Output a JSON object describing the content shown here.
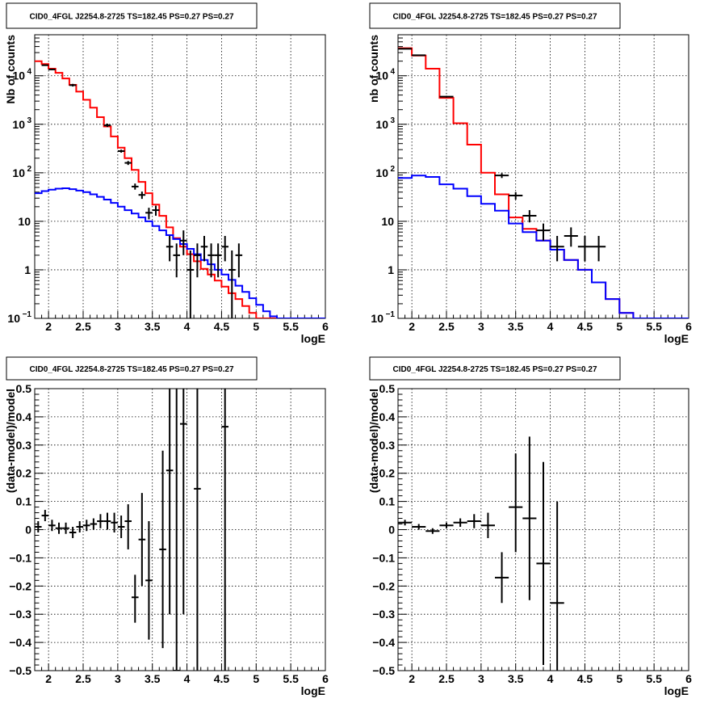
{
  "chart_data": [
    {
      "type": "line",
      "title": "CID0_4FGL J2254.8-2725 TS=182.45 PS=0.27 PS=0.27",
      "xlabel": "logE",
      "ylabel": "Nb of counts",
      "xlim": [
        1.8,
        6.0
      ],
      "ylim": [
        0.1,
        70000
      ],
      "yscale": "log",
      "grid": true,
      "xticks": [
        "2",
        "2.5",
        "3",
        "3.5",
        "4",
        "4.5",
        "5",
        "5.5",
        "6"
      ],
      "yticks": [
        {
          "v": 0.1,
          "b": "10",
          "e": "−1"
        },
        {
          "v": 1,
          "b": "1",
          "e": ""
        },
        {
          "v": 10,
          "b": "10",
          "e": ""
        },
        {
          "v": 100,
          "b": "10",
          "e": "2"
        },
        {
          "v": 1000,
          "b": "10",
          "e": "3"
        },
        {
          "v": 10000,
          "b": "10",
          "e": "4"
        }
      ],
      "step_width": 0.1,
      "series": [
        {
          "color": "#ff0000",
          "x0": 1.8,
          "values": [
            20000,
            17500,
            14000,
            11500,
            8800,
            6500,
            4700,
            3200,
            2200,
            1400,
            900,
            560,
            330,
            200,
            115,
            65,
            38,
            22,
            13,
            7.5,
            4.5,
            3.0,
            2.1,
            1.5,
            1.05,
            0.8,
            0.6,
            0.45,
            0.33,
            0.25,
            0.18,
            0.13,
            0.1,
            0.1,
            0.1,
            0.1,
            0.1,
            0.1,
            0.1,
            0.1,
            0.1,
            0.1
          ]
        },
        {
          "color": "#0000ff",
          "x0": 1.8,
          "values": [
            38,
            42,
            45,
            47,
            48,
            46,
            43,
            40,
            36,
            32,
            28,
            24,
            20,
            17,
            14.5,
            12,
            10,
            8,
            6.5,
            5.2,
            4.3,
            3.4,
            2.7,
            2.1,
            1.6,
            1.3,
            1.0,
            0.8,
            0.62,
            0.47,
            0.35,
            0.26,
            0.19,
            0.14,
            0.11,
            0.1,
            0.1,
            0.1,
            0.1,
            0.1,
            0.1,
            0.1
          ]
        }
      ],
      "points": [
        {
          "x": 1.95,
          "y": 16500,
          "xe": 0.05,
          "yl": 16000,
          "yh": 17000
        },
        {
          "x": 2.05,
          "y": 13500,
          "xe": 0.05,
          "yl": 13000,
          "yh": 14000
        },
        {
          "x": 2.35,
          "y": 6400,
          "xe": 0.05,
          "yl": 6000,
          "yh": 6800
        },
        {
          "x": 2.85,
          "y": 950,
          "xe": 0.05,
          "yl": 880,
          "yh": 1030
        },
        {
          "x": 3.05,
          "y": 280,
          "xe": 0.05,
          "yl": 260,
          "yh": 300
        },
        {
          "x": 3.15,
          "y": 160,
          "xe": 0.05,
          "yl": 145,
          "yh": 175
        },
        {
          "x": 3.25,
          "y": 52,
          "xe": 0.05,
          "yl": 45,
          "yh": 60
        },
        {
          "x": 3.35,
          "y": 35,
          "xe": 0.05,
          "yl": 29,
          "yh": 41
        },
        {
          "x": 3.45,
          "y": 15,
          "xe": 0.05,
          "yl": 11,
          "yh": 19
        },
        {
          "x": 3.55,
          "y": 17,
          "xe": 0.05,
          "yl": 13,
          "yh": 21
        },
        {
          "x": 3.75,
          "y": 3.0,
          "xe": 0.05,
          "yl": 1.5,
          "yh": 5.0
        },
        {
          "x": 3.85,
          "y": 2.0,
          "xe": 0.05,
          "yl": 0.7,
          "yh": 3.5
        },
        {
          "x": 3.95,
          "y": 4.0,
          "xe": 0.05,
          "yl": 2.0,
          "yh": 6.5
        },
        {
          "x": 4.05,
          "y": 1.0,
          "xe": 0.05,
          "yl": 0.1,
          "yh": 2.5
        },
        {
          "x": 4.15,
          "y": 2.0,
          "xe": 0.05,
          "yl": 0.7,
          "yh": 3.5
        },
        {
          "x": 4.25,
          "y": 3.0,
          "xe": 0.05,
          "yl": 1.5,
          "yh": 5.0
        },
        {
          "x": 4.35,
          "y": 2.0,
          "xe": 0.05,
          "yl": 0.7,
          "yh": 3.5
        },
        {
          "x": 4.45,
          "y": 2.0,
          "xe": 0.05,
          "yl": 0.7,
          "yh": 3.5
        },
        {
          "x": 4.55,
          "y": 3.0,
          "xe": 0.05,
          "yl": 1.5,
          "yh": 5.0
        },
        {
          "x": 4.65,
          "y": 1.0,
          "xe": 0.05,
          "yl": 0.1,
          "yh": 2.5
        },
        {
          "x": 4.75,
          "y": 2.0,
          "xe": 0.05,
          "yl": 0.7,
          "yh": 3.5
        }
      ]
    },
    {
      "type": "line",
      "title": "CID0_4FGL J2254.8-2725 TS=182.45 PS=0.27 PS=0.27",
      "xlabel": "logE",
      "ylabel": "nb of counts",
      "xlim": [
        1.8,
        6.0
      ],
      "ylim": [
        0.1,
        70000
      ],
      "yscale": "log",
      "grid": true,
      "xticks": [
        "2",
        "2.5",
        "3",
        "3.5",
        "4",
        "4.5",
        "5",
        "5.5",
        "6"
      ],
      "yticks": [
        {
          "v": 0.1,
          "b": "10",
          "e": "−1"
        },
        {
          "v": 1,
          "b": "1",
          "e": ""
        },
        {
          "v": 10,
          "b": "10",
          "e": ""
        },
        {
          "v": 100,
          "b": "10",
          "e": "2"
        },
        {
          "v": 1000,
          "b": "10",
          "e": "3"
        },
        {
          "v": 10000,
          "b": "10",
          "e": "4"
        }
      ],
      "step_width": 0.2,
      "series": [
        {
          "color": "#ff0000",
          "x0": 1.8,
          "values": [
            37000,
            26000,
            14000,
            3500,
            1050,
            380,
            100,
            36,
            12,
            7,
            4,
            2.6,
            1.6,
            1.0,
            0.55,
            0.25,
            0.13,
            0.1,
            0.1,
            0.1,
            0.1
          ]
        },
        {
          "color": "#0000ff",
          "x0": 1.8,
          "values": [
            78,
            88,
            82,
            58,
            47,
            33,
            23,
            16.5,
            9,
            6,
            4,
            2.6,
            1.6,
            1.0,
            0.55,
            0.25,
            0.13,
            0.1,
            0.1,
            0.1,
            0.1
          ]
        }
      ],
      "points": [
        {
          "x": 1.9,
          "y": 36000,
          "xe": 0.1,
          "yl": 35500,
          "yh": 36500
        },
        {
          "x": 2.1,
          "y": 26500,
          "xe": 0.1,
          "yl": 26000,
          "yh": 27000
        },
        {
          "x": 2.5,
          "y": 3700,
          "xe": 0.1,
          "yl": 3550,
          "yh": 3850
        },
        {
          "x": 3.3,
          "y": 88,
          "xe": 0.1,
          "yl": 78,
          "yh": 98
        },
        {
          "x": 3.5,
          "y": 34,
          "xe": 0.1,
          "yl": 28,
          "yh": 40
        },
        {
          "x": 3.7,
          "y": 13,
          "xe": 0.1,
          "yl": 9.5,
          "yh": 17
        },
        {
          "x": 3.9,
          "y": 6.5,
          "xe": 0.1,
          "yl": 4,
          "yh": 9
        },
        {
          "x": 4.1,
          "y": 3.0,
          "xe": 0.1,
          "yl": 1.5,
          "yh": 5.0
        },
        {
          "x": 4.3,
          "y": 5.0,
          "xe": 0.1,
          "yl": 3.0,
          "yh": 7.5
        },
        {
          "x": 4.5,
          "y": 3.0,
          "xe": 0.1,
          "yl": 1.5,
          "yh": 5.0
        },
        {
          "x": 4.7,
          "y": 3.0,
          "xe": 0.1,
          "yl": 1.5,
          "yh": 5.0
        }
      ]
    },
    {
      "type": "scatter",
      "title": "CID0_4FGL J2254.8-2725 TS=182.45 PS=0.27 PS=0.27",
      "xlabel": "logE",
      "ylabel": "(data-model)/model",
      "xlim": [
        1.8,
        6.0
      ],
      "ylim": [
        -0.5,
        0.5
      ],
      "yscale": "linear",
      "grid": true,
      "xticks": [
        "2",
        "2.5",
        "3",
        "3.5",
        "4",
        "4.5",
        "5",
        "5.5",
        "6"
      ],
      "yticks": [
        {
          "v": -0.5,
          "t": "−0.5"
        },
        {
          "v": -0.4,
          "t": "−0.4"
        },
        {
          "v": -0.3,
          "t": "−0.3"
        },
        {
          "v": -0.2,
          "t": "−0.2"
        },
        {
          "v": -0.1,
          "t": "−0.1"
        },
        {
          "v": 0,
          "t": "0"
        },
        {
          "v": 0.1,
          "t": "0.1"
        },
        {
          "v": 0.2,
          "t": "0.2"
        },
        {
          "v": 0.3,
          "t": "0.3"
        },
        {
          "v": 0.4,
          "t": "0.4"
        },
        {
          "v": 0.5,
          "t": "0.5"
        }
      ],
      "points": [
        {
          "x": 1.85,
          "y": 0.01,
          "xe": 0.05,
          "yl": -0.01,
          "yh": 0.03
        },
        {
          "x": 1.95,
          "y": 0.05,
          "xe": 0.05,
          "yl": 0.03,
          "yh": 0.07
        },
        {
          "x": 2.05,
          "y": 0.015,
          "xe": 0.05,
          "yl": -0.005,
          "yh": 0.035
        },
        {
          "x": 2.15,
          "y": 0.005,
          "xe": 0.05,
          "yl": -0.015,
          "yh": 0.025
        },
        {
          "x": 2.25,
          "y": 0.005,
          "xe": 0.05,
          "yl": -0.015,
          "yh": 0.025
        },
        {
          "x": 2.35,
          "y": -0.01,
          "xe": 0.05,
          "yl": -0.03,
          "yh": 0.01
        },
        {
          "x": 2.45,
          "y": 0.01,
          "xe": 0.05,
          "yl": -0.01,
          "yh": 0.03
        },
        {
          "x": 2.55,
          "y": 0.015,
          "xe": 0.05,
          "yl": -0.005,
          "yh": 0.035
        },
        {
          "x": 2.65,
          "y": 0.02,
          "xe": 0.05,
          "yl": 0.0,
          "yh": 0.04
        },
        {
          "x": 2.75,
          "y": 0.03,
          "xe": 0.05,
          "yl": 0.005,
          "yh": 0.055
        },
        {
          "x": 2.85,
          "y": 0.03,
          "xe": 0.05,
          "yl": 0.0,
          "yh": 0.06
        },
        {
          "x": 2.95,
          "y": 0.025,
          "xe": 0.05,
          "yl": -0.01,
          "yh": 0.06
        },
        {
          "x": 3.05,
          "y": 0.01,
          "xe": 0.05,
          "yl": -0.03,
          "yh": 0.05
        },
        {
          "x": 3.15,
          "y": 0.03,
          "xe": 0.05,
          "yl": -0.07,
          "yh": 0.09
        },
        {
          "x": 3.25,
          "y": -0.24,
          "xe": 0.05,
          "yl": -0.33,
          "yh": -0.16
        },
        {
          "x": 3.35,
          "y": -0.035,
          "xe": 0.05,
          "yl": -0.2,
          "yh": 0.13
        },
        {
          "x": 3.45,
          "y": -0.18,
          "xe": 0.05,
          "yl": -0.39,
          "yh": 0.03
        },
        {
          "x": 3.65,
          "y": -0.07,
          "xe": 0.05,
          "yl": -0.42,
          "yh": 0.28
        },
        {
          "x": 3.75,
          "y": 0.21,
          "xe": 0.05,
          "yl": -0.3,
          "yh": 0.5
        },
        {
          "x": 3.85,
          "y": -0.5,
          "xe": 0.05,
          "yl": -0.5,
          "yh": 0.5
        },
        {
          "x": 3.95,
          "y": 0.375,
          "xe": 0.05,
          "yl": -0.3,
          "yh": 0.5
        },
        {
          "x": 4.15,
          "y": 0.145,
          "xe": 0.05,
          "yl": -0.5,
          "yh": 0.5
        },
        {
          "x": 4.55,
          "y": 0.365,
          "xe": 0.05,
          "yl": -0.5,
          "yh": 0.5
        }
      ]
    },
    {
      "type": "scatter",
      "title": "CID0_4FGL J2254.8-2725 TS=182.45 PS=0.27 PS=0.27",
      "xlabel": "logE",
      "ylabel": "(data-model)/model",
      "xlim": [
        1.8,
        6.0
      ],
      "ylim": [
        -0.5,
        0.5
      ],
      "yscale": "linear",
      "grid": true,
      "xticks": [
        "2",
        "2.5",
        "3",
        "3.5",
        "4",
        "4.5",
        "5",
        "5.5",
        "6"
      ],
      "yticks": [
        {
          "v": -0.5,
          "t": "−0.5"
        },
        {
          "v": -0.4,
          "t": "−0.4"
        },
        {
          "v": -0.3,
          "t": "−0.3"
        },
        {
          "v": -0.2,
          "t": "−0.2"
        },
        {
          "v": -0.1,
          "t": "−0.1"
        },
        {
          "v": 0,
          "t": "0"
        },
        {
          "v": 0.1,
          "t": "0.1"
        },
        {
          "v": 0.2,
          "t": "0.2"
        },
        {
          "v": 0.3,
          "t": "0.3"
        },
        {
          "v": 0.4,
          "t": "0.4"
        },
        {
          "v": 0.5,
          "t": "0.5"
        }
      ],
      "points": [
        {
          "x": 1.9,
          "y": 0.025,
          "xe": 0.1,
          "yl": 0.015,
          "yh": 0.035
        },
        {
          "x": 2.1,
          "y": 0.01,
          "xe": 0.1,
          "yl": 0.0,
          "yh": 0.02
        },
        {
          "x": 2.3,
          "y": -0.005,
          "xe": 0.1,
          "yl": -0.015,
          "yh": 0.005
        },
        {
          "x": 2.5,
          "y": 0.015,
          "xe": 0.1,
          "yl": 0.005,
          "yh": 0.025
        },
        {
          "x": 2.7,
          "y": 0.025,
          "xe": 0.1,
          "yl": 0.01,
          "yh": 0.04
        },
        {
          "x": 2.9,
          "y": 0.03,
          "xe": 0.1,
          "yl": 0.005,
          "yh": 0.055
        },
        {
          "x": 3.1,
          "y": 0.015,
          "xe": 0.1,
          "yl": -0.03,
          "yh": 0.06
        },
        {
          "x": 3.3,
          "y": -0.17,
          "xe": 0.1,
          "yl": -0.26,
          "yh": -0.08
        },
        {
          "x": 3.5,
          "y": 0.08,
          "xe": 0.1,
          "yl": -0.08,
          "yh": 0.27
        },
        {
          "x": 3.7,
          "y": 0.04,
          "xe": 0.1,
          "yl": -0.25,
          "yh": 0.33
        },
        {
          "x": 3.9,
          "y": -0.12,
          "xe": 0.1,
          "yl": -0.48,
          "yh": 0.24
        },
        {
          "x": 4.1,
          "y": -0.26,
          "xe": 0.1,
          "yl": -0.5,
          "yh": 0.1
        }
      ]
    }
  ]
}
